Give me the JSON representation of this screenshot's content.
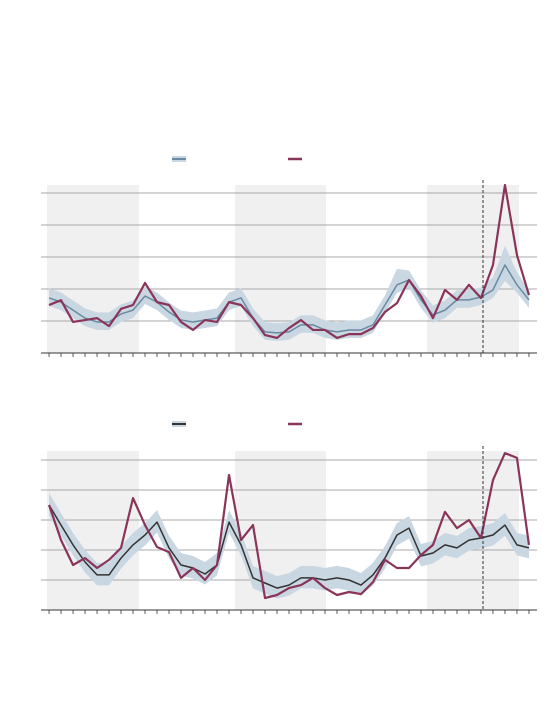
{
  "chart_data": [
    {
      "type": "line",
      "x": [
        0,
        1,
        2,
        3,
        4,
        5,
        6,
        7,
        8,
        9,
        10,
        11,
        12,
        13,
        14,
        15,
        16,
        17,
        18,
        19,
        20,
        21,
        22,
        23,
        24,
        25,
        26,
        27,
        28,
        29,
        30,
        31,
        32,
        33,
        34,
        35,
        36,
        37,
        38,
        39,
        40
      ],
      "xlim": [
        -0.67,
        40.67
      ],
      "ylim": [
        0,
        5.25
      ],
      "yticks": [
        1,
        2,
        3,
        4,
        5
      ],
      "grid": true,
      "xticks": [
        0,
        1,
        2,
        3,
        4,
        5,
        6,
        7,
        8,
        9,
        10,
        11,
        12,
        13,
        14,
        15,
        16,
        17,
        18,
        19,
        20,
        21,
        22,
        23,
        24,
        25,
        26,
        27,
        28,
        29,
        30,
        31,
        32,
        33,
        34,
        35,
        36,
        37,
        38,
        39,
        40
      ],
      "shaded_regions": [
        [
          -0.17,
          7.5
        ],
        [
          15.5,
          23.08
        ],
        [
          31.5,
          39.17
        ]
      ],
      "shade_color": "#f0f0f0",
      "vline": 36.17,
      "band": {
        "color": "#c9d7e2",
        "upper": [
          2.02,
          1.89,
          1.64,
          1.39,
          1.27,
          1.27,
          1.52,
          1.64,
          2.08,
          1.89,
          1.58,
          1.33,
          1.27,
          1.33,
          1.39,
          1.89,
          2.02,
          1.39,
          0.96,
          0.93,
          0.96,
          1.18,
          1.18,
          1.02,
          0.96,
          1.02,
          1.02,
          1.18,
          1.8,
          2.63,
          2.58,
          1.96,
          1.49,
          1.64,
          1.96,
          1.96,
          2.05,
          2.37,
          3.35,
          2.53,
          1.96
        ],
        "lower": [
          1.47,
          1.34,
          1.09,
          0.84,
          0.72,
          0.72,
          0.97,
          1.09,
          1.53,
          1.34,
          1.03,
          0.78,
          0.72,
          0.78,
          0.84,
          1.34,
          1.47,
          0.84,
          0.41,
          0.38,
          0.41,
          0.63,
          0.63,
          0.47,
          0.41,
          0.47,
          0.47,
          0.63,
          1.25,
          1.88,
          2.03,
          1.41,
          0.94,
          1.09,
          1.41,
          1.41,
          1.5,
          1.72,
          2.25,
          1.88,
          1.41
        ]
      },
      "series": [
        {
          "color": "#6a8aa3",
          "values": [
            1.72,
            1.59,
            1.34,
            1.09,
            0.97,
            0.97,
            1.22,
            1.34,
            1.78,
            1.59,
            1.28,
            1.03,
            0.97,
            1.03,
            1.09,
            1.59,
            1.72,
            1.09,
            0.66,
            0.63,
            0.66,
            0.88,
            0.88,
            0.72,
            0.66,
            0.72,
            0.72,
            0.88,
            1.5,
            2.13,
            2.28,
            1.66,
            1.19,
            1.34,
            1.66,
            1.66,
            1.75,
            1.97,
            2.75,
            2.13,
            1.66
          ]
        },
        {
          "color": "#8a3459",
          "values": [
            1.5,
            1.65,
            0.97,
            1.03,
            1.09,
            0.84,
            1.38,
            1.5,
            2.19,
            1.59,
            1.5,
            0.97,
            0.72,
            1.03,
            0.97,
            1.59,
            1.5,
            1.09,
            0.56,
            0.47,
            0.78,
            1.03,
            0.72,
            0.72,
            0.47,
            0.59,
            0.59,
            0.78,
            1.28,
            1.56,
            2.28,
            1.78,
            1.09,
            1.97,
            1.66,
            2.13,
            1.72,
            2.75,
            5.25,
            3.06,
            1.81
          ]
        }
      ]
    },
    {
      "type": "line",
      "x": [
        0,
        1,
        2,
        3,
        4,
        5,
        6,
        7,
        8,
        9,
        10,
        11,
        12,
        13,
        14,
        15,
        16,
        17,
        18,
        19,
        20,
        21,
        22,
        23,
        24,
        25,
        26,
        27,
        28,
        29,
        30,
        31,
        32,
        33,
        34,
        35,
        36,
        37,
        38,
        39,
        40
      ],
      "xlim": [
        -0.67,
        40.67
      ],
      "ylim": [
        0,
        5.3
      ],
      "yticks": [
        1,
        2,
        3,
        4,
        5
      ],
      "grid": true,
      "xticks": [
        0,
        1,
        2,
        3,
        4,
        5,
        6,
        7,
        8,
        9,
        10,
        11,
        12,
        13,
        14,
        15,
        16,
        17,
        18,
        19,
        20,
        21,
        22,
        23,
        24,
        25,
        26,
        27,
        28,
        29,
        30,
        31,
        32,
        33,
        34,
        35,
        36,
        37,
        38,
        39,
        40
      ],
      "shaded_regions": [
        [
          -0.17,
          7.5
        ],
        [
          15.5,
          23.08
        ],
        [
          31.5,
          39.17
        ]
      ],
      "shade_color": "#f0f0f0",
      "vline": 36.17,
      "band": {
        "color": "#c9d7e2",
        "upper": [
          3.9,
          3.23,
          2.57,
          2.0,
          1.57,
          1.57,
          2.13,
          2.57,
          2.9,
          3.33,
          2.47,
          1.9,
          1.8,
          1.6,
          1.9,
          3.33,
          2.57,
          1.47,
          1.3,
          1.13,
          1.23,
          1.47,
          1.47,
          1.4,
          1.47,
          1.4,
          1.23,
          1.57,
          2.13,
          2.9,
          3.13,
          2.2,
          2.3,
          2.57,
          2.47,
          2.73,
          2.8,
          2.9,
          3.23,
          2.57,
          2.47
        ],
        "lower": [
          3.15,
          2.48,
          1.82,
          1.25,
          0.82,
          0.82,
          1.38,
          1.82,
          2.15,
          2.58,
          1.72,
          1.15,
          1.05,
          0.85,
          1.15,
          2.58,
          1.82,
          0.72,
          0.55,
          0.38,
          0.48,
          0.72,
          0.72,
          0.65,
          0.72,
          0.65,
          0.48,
          0.82,
          1.38,
          2.15,
          2.38,
          1.45,
          1.55,
          1.82,
          1.72,
          1.98,
          2.05,
          2.15,
          2.48,
          1.82,
          1.72
        ]
      },
      "series": [
        {
          "color": "#333333",
          "values": [
            3.5,
            2.83,
            2.17,
            1.6,
            1.17,
            1.17,
            1.73,
            2.17,
            2.5,
            2.93,
            2.07,
            1.5,
            1.4,
            1.2,
            1.5,
            2.93,
            2.17,
            1.07,
            0.9,
            0.73,
            0.83,
            1.07,
            1.07,
            1.0,
            1.07,
            1.0,
            0.83,
            1.17,
            1.73,
            2.5,
            2.73,
            1.8,
            1.9,
            2.17,
            2.07,
            2.33,
            2.4,
            2.5,
            2.83,
            2.17,
            2.07
          ]
        },
        {
          "color": "#8a3459",
          "values": [
            3.5,
            2.33,
            1.5,
            1.73,
            1.4,
            1.67,
            2.07,
            3.73,
            2.83,
            2.1,
            1.93,
            1.07,
            1.4,
            1.0,
            1.5,
            4.5,
            2.33,
            2.83,
            0.4,
            0.5,
            0.73,
            0.83,
            1.07,
            0.73,
            0.5,
            0.6,
            0.53,
            0.93,
            1.67,
            1.4,
            1.4,
            1.83,
            2.17,
            3.27,
            2.73,
            3.0,
            2.4,
            4.33,
            5.23,
            5.07,
            2.17
          ]
        }
      ]
    }
  ]
}
